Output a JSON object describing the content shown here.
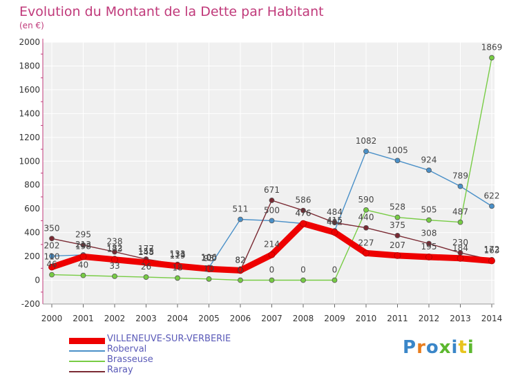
{
  "header": {
    "title": "Evolution du Montant de la Dette par Habitant",
    "unit": "(en €)"
  },
  "logo": {
    "text": "Proxiti",
    "letter_colors": [
      "#3a86c8",
      "#e87d1e",
      "#3a86c8",
      "#5cb82e",
      "#3a86c8",
      "#e8c41e",
      "#5cb82e"
    ]
  },
  "chart_data": {
    "type": "line",
    "title": "Evolution du Montant de la Dette par Habitant",
    "ylabel": "(en €)",
    "xlabel": "",
    "x": [
      "2000",
      "2001",
      "2002",
      "2003",
      "2004",
      "2005",
      "2006",
      "2007",
      "2008",
      "2009",
      "2010",
      "2011",
      "2012",
      "2013",
      "2014"
    ],
    "yticks": [
      "-200",
      "0",
      "200",
      "400",
      "600",
      "800",
      "1000",
      "1200",
      "1400",
      "1600",
      "1800",
      "2000"
    ],
    "ylim": [
      -200,
      2000
    ],
    "grid": true,
    "legend_position": "bottom-left",
    "series": [
      {
        "name": "VILLENEUVE-SUR-VERBERIE",
        "color": "#ee0000",
        "values": [
          110,
          198,
          173,
          148,
          119,
          95,
          82,
          214,
          476,
          402,
          227,
          207,
          195,
          184,
          163
        ]
      },
      {
        "name": "Roberval",
        "color": "#4a90c8",
        "values": [
          202,
          213,
          182,
          155,
          131,
          106,
          511,
          500,
          476,
          415,
          1082,
          1005,
          924,
          789,
          622
        ]
      },
      {
        "name": "Brasseuse",
        "color": "#77cc44",
        "values": [
          46,
          40,
          33,
          26,
          18,
          10,
          0,
          0,
          0,
          0,
          590,
          528,
          505,
          487,
          1869
        ]
      },
      {
        "name": "Raray",
        "color": "#7a2a33",
        "values": [
          350,
          295,
          238,
          177,
          133,
          100,
          82,
          671,
          586,
          484,
          440,
          375,
          308,
          230,
          172
        ]
      }
    ]
  }
}
